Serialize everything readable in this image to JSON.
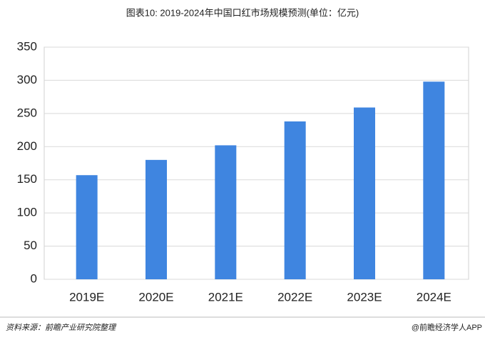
{
  "chart_data": {
    "type": "bar",
    "title": "图表10: 2019-2024年中国口红市场规模预测(单位：亿元)",
    "categories": [
      "2019E",
      "2020E",
      "2021E",
      "2022E",
      "2023E",
      "2024E"
    ],
    "values": [
      157,
      180,
      202,
      238,
      259,
      298
    ],
    "color": "#3f85e0",
    "ylim": [
      0,
      350
    ],
    "yticks": [
      0,
      50,
      100,
      150,
      200,
      250,
      300,
      350
    ],
    "grid": true
  },
  "source": "资料来源：前瞻产业研究院整理",
  "footer": "@前瞻经济学人APP"
}
